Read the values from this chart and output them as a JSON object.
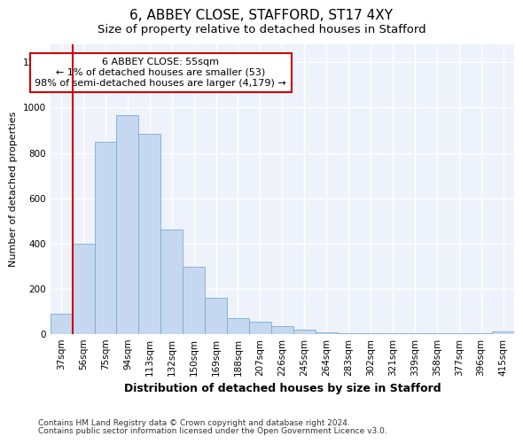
{
  "title1": "6, ABBEY CLOSE, STAFFORD, ST17 4XY",
  "title2": "Size of property relative to detached houses in Stafford",
  "xlabel": "Distribution of detached houses by size in Stafford",
  "ylabel": "Number of detached properties",
  "categories": [
    "37sqm",
    "56sqm",
    "75sqm",
    "94sqm",
    "113sqm",
    "132sqm",
    "150sqm",
    "169sqm",
    "188sqm",
    "207sqm",
    "226sqm",
    "245sqm",
    "264sqm",
    "283sqm",
    "302sqm",
    "321sqm",
    "339sqm",
    "358sqm",
    "377sqm",
    "396sqm",
    "415sqm"
  ],
  "values": [
    90,
    400,
    848,
    965,
    885,
    460,
    298,
    158,
    70,
    52,
    35,
    20,
    5,
    2,
    2,
    2,
    2,
    2,
    2,
    2,
    10
  ],
  "bar_color": "#c5d8f0",
  "bar_edge_color": "#7aadd4",
  "background_color": "#eef2fa",
  "grid_color": "#ffffff",
  "red_line_index": 1,
  "annotation_text": "6 ABBEY CLOSE: 55sqm\n← 1% of detached houses are smaller (53)\n98% of semi-detached houses are larger (4,179) →",
  "annotation_box_color": "#ffffff",
  "annotation_box_edge": "#cc0000",
  "ylim": [
    0,
    1280
  ],
  "yticks": [
    0,
    200,
    400,
    600,
    800,
    1000,
    1200
  ],
  "footnote1": "Contains HM Land Registry data © Crown copyright and database right 2024.",
  "footnote2": "Contains public sector information licensed under the Open Government Licence v3.0.",
  "title1_fontsize": 11,
  "title2_fontsize": 9.5,
  "xlabel_fontsize": 9,
  "ylabel_fontsize": 8,
  "tick_fontsize": 7.5,
  "footnote_fontsize": 6.5
}
